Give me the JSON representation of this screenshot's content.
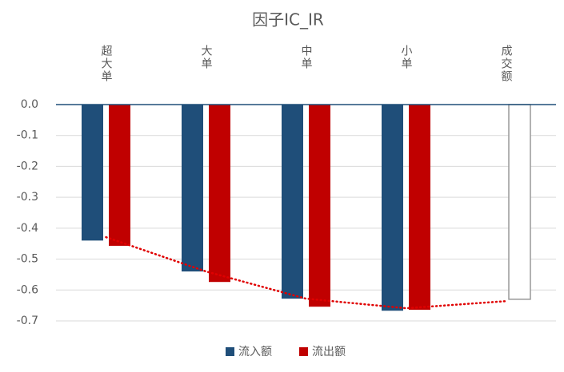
{
  "chart_data": {
    "type": "bar",
    "title": "因子IC_IR",
    "categories": [
      "超大单",
      "大单",
      "中单",
      "小单",
      "成交额"
    ],
    "series": [
      {
        "name": "流入额",
        "color": "#1f4e79",
        "legend": true,
        "values": [
          -0.44,
          -0.54,
          -0.628,
          -0.667,
          null
        ]
      },
      {
        "name": "流出额",
        "color": "#c00000",
        "legend": true,
        "values": [
          -0.457,
          -0.574,
          -0.654,
          -0.664,
          null
        ]
      },
      {
        "color": "#999999",
        "hollow": true,
        "legend": false,
        "values": [
          null,
          null,
          null,
          null,
          -0.63
        ]
      }
    ],
    "trend_line": {
      "color": "#e00000",
      "values": [
        -0.429,
        -0.54,
        -0.628,
        -0.659,
        -0.636
      ]
    },
    "ylim": [
      -0.7,
      0
    ],
    "yticks": [
      {
        "value": 0,
        "label": "0.0"
      },
      -0.1,
      -0.2,
      -0.3,
      -0.4,
      -0.5,
      -0.6,
      -0.7
    ],
    "grid": true
  }
}
